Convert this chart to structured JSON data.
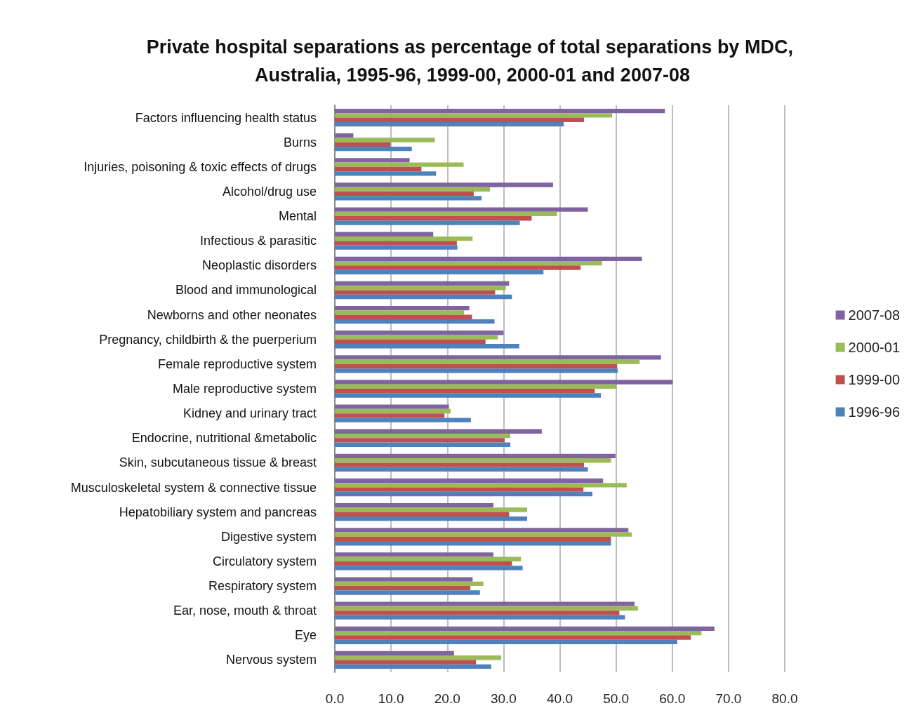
{
  "chart_data": {
    "type": "bar",
    "orientation": "horizontal",
    "title": "Private hospital separations as percentage of total separations by MDC, Australia, 1995-96, 1999-00, 2000-01 and 2007-08",
    "categories": [
      "Factors influencing health status",
      "Burns",
      "Injuries, poisoning & toxic effects of drugs",
      "Alcohol/drug use",
      "Mental",
      "Infectious & parasitic",
      "Neoplastic disorders",
      "Blood and immunological",
      "Newborns and other neonates",
      "Pregnancy, childbirth & the puerperium",
      "Female reproductive system",
      "Male reproductive system",
      "Kidney and urinary tract",
      "Endocrine, nutritional &metabolic",
      "Skin, subcutaneous tissue & breast",
      "Musculoskeletal system & connective tissue",
      "Hepatobiliary system and pancreas",
      "Digestive system",
      "Circulatory system",
      "Respiratory system",
      "Ear, nose, mouth & throat",
      "Eye",
      "Nervous system"
    ],
    "series": [
      {
        "name": "2007-08",
        "color": "#8064a2",
        "values": [
          58.7,
          3.3,
          13.3,
          38.8,
          45.0,
          17.5,
          54.6,
          31.0,
          23.9,
          30.0,
          58.0,
          60.1,
          20.3,
          36.8,
          49.9,
          47.7,
          28.2,
          52.2,
          28.2,
          24.5,
          53.3,
          67.5,
          21.2
        ]
      },
      {
        "name": "2000-01",
        "color": "#9bbb59",
        "values": [
          49.3,
          17.8,
          22.9,
          27.6,
          39.5,
          24.5,
          47.5,
          30.4,
          23.0,
          29.0,
          54.2,
          50.1,
          20.6,
          31.2,
          49.1,
          51.9,
          34.2,
          52.8,
          33.1,
          26.4,
          53.9,
          65.2,
          29.6
        ]
      },
      {
        "name": "1999-00",
        "color": "#c0504d",
        "values": [
          44.3,
          9.9,
          15.4,
          24.7,
          35.0,
          21.7,
          43.7,
          28.5,
          24.4,
          26.8,
          50.2,
          46.2,
          19.5,
          30.2,
          44.3,
          44.2,
          31.0,
          49.1,
          31.5,
          24.1,
          50.6,
          63.3,
          25.1
        ]
      },
      {
        "name": "1996-96",
        "color": "#4f81bd",
        "values": [
          40.7,
          13.7,
          18.0,
          26.1,
          32.9,
          21.8,
          37.1,
          31.5,
          28.4,
          32.8,
          50.3,
          47.3,
          24.2,
          31.2,
          45.0,
          45.8,
          34.2,
          49.1,
          33.4,
          25.8,
          51.6,
          60.9,
          27.8
        ]
      }
    ],
    "xlim": [
      0,
      80
    ],
    "xticks": [
      {
        "value": 0,
        "label": "0.0"
      },
      {
        "value": 10,
        "label": "10.0"
      },
      {
        "value": 20,
        "label": "20.0"
      },
      {
        "value": 30,
        "label": "30.0"
      },
      {
        "value": 40,
        "label": "40.0"
      },
      {
        "value": 50,
        "label": "50.0"
      },
      {
        "value": 60,
        "label": "60.0"
      },
      {
        "value": 70,
        "label": "70.0"
      },
      {
        "value": 80,
        "label": "80.0"
      }
    ],
    "grid": "x",
    "legend": "right"
  }
}
